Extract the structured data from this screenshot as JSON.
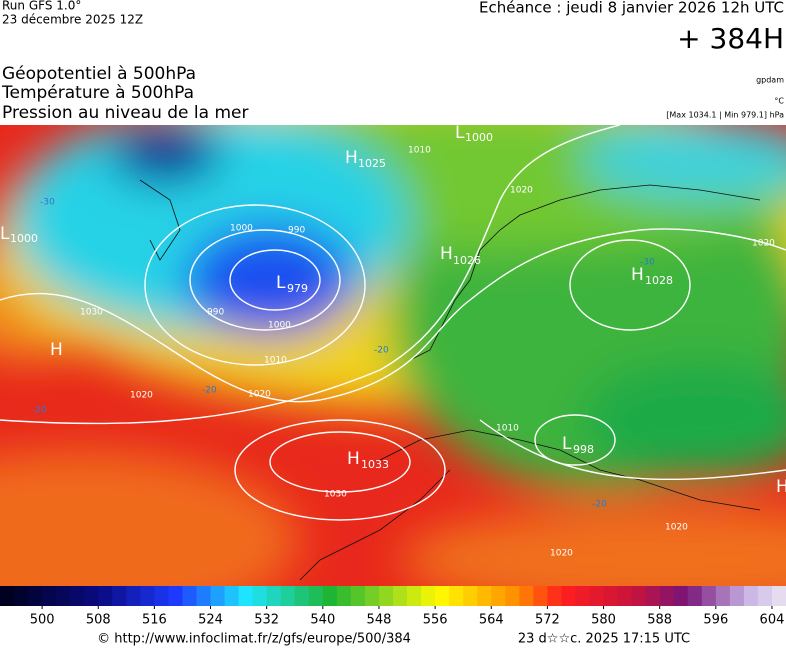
{
  "header": {
    "run": "Run GFS 1.0°",
    "date": "23 décembre 2025 12Z",
    "forecast": "Echéance : jeudi 8 janvier 2026 12h UTC",
    "lead": "+ 384H"
  },
  "legend": {
    "lines": [
      "Géopotentiel à 500hPa",
      "Température à 500hPa",
      "Pression au niveau de la mer"
    ],
    "units": [
      "gpdam",
      "°C"
    ],
    "extremes": "[Max 1034.1 | Min 979.1] hPa"
  },
  "map": {
    "centers": [
      {
        "kind": "L",
        "value": 1000
      },
      {
        "kind": "H",
        "value": 1025
      },
      {
        "kind": "L",
        "value": 1000
      },
      {
        "kind": "L",
        "value": 979
      },
      {
        "kind": "H",
        "value": 1026
      },
      {
        "kind": "H",
        "value": 1028
      },
      {
        "kind": "H",
        "value": 1033
      },
      {
        "kind": "L",
        "value": 998
      },
      {
        "kind": "H"
      },
      {
        "kind": "H"
      }
    ],
    "isobar_labels": [
      1010,
      1000,
      990,
      990,
      1000,
      1010,
      1030,
      1020,
      1020,
      1020,
      1030,
      1020,
      1020,
      1020,
      1010
    ],
    "temperature_labels": [
      -30,
      -20,
      -20,
      -20,
      -20,
      -30
    ]
  },
  "colorbar": {
    "range": [
      494,
      606
    ],
    "ticks": [
      500,
      508,
      516,
      524,
      532,
      540,
      548,
      556,
      564,
      572,
      580,
      588,
      596,
      604
    ]
  },
  "footer": {
    "url": "© http://www.infoclimat.fr/z/gfs/europe/500/384",
    "timestamp": "23 d☆☆c. 2025 17:15 UTC"
  }
}
